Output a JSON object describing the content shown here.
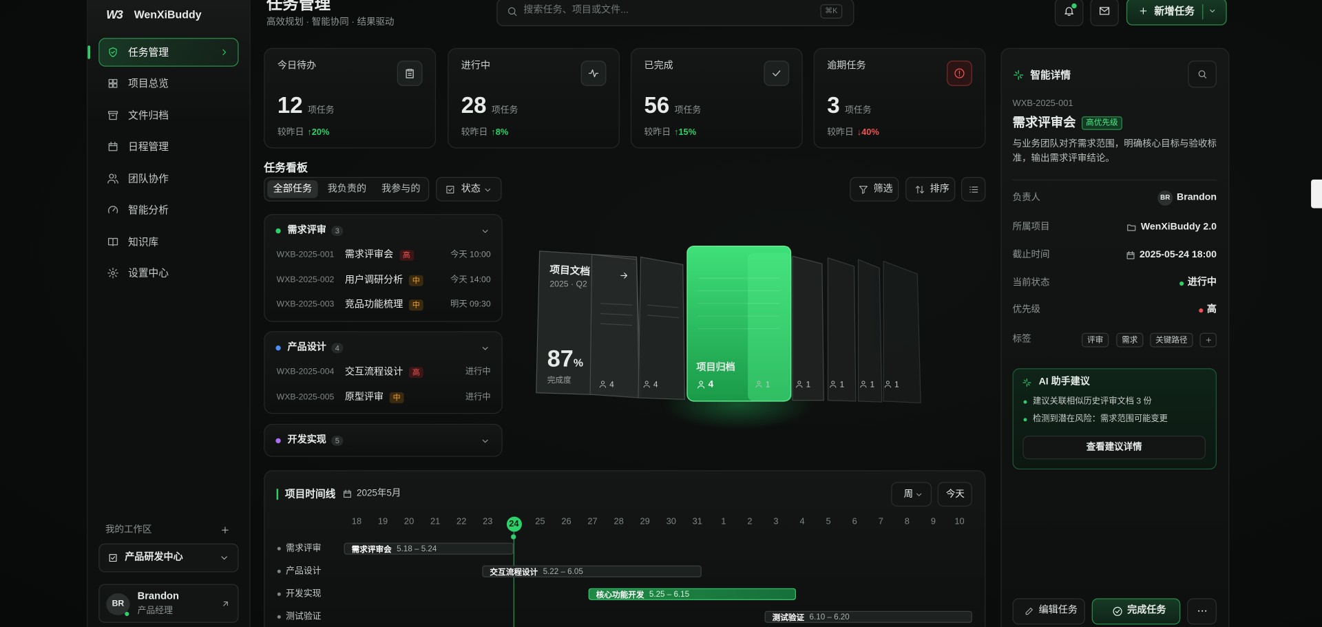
{
  "sidebar": {
    "logo_mark": "W3",
    "brand": "WenXiBuddy",
    "nav": [
      "任务管理",
      "项目总览",
      "文件归档",
      "日程管理",
      "团队协作",
      "智能分析",
      "知识库",
      "设置中心"
    ],
    "workspace_label": "我的工作区",
    "workspace": "产品研发中心",
    "user": {
      "initials": "BR",
      "name": "Brandon",
      "role": "产品经理"
    }
  },
  "header": {
    "title": "任务管理",
    "subtitle": "高效规划 · 智能协同 · 结果驱动",
    "search_placeholder": "搜索任务、项目或文件...",
    "shortcut": "⌘K",
    "new_button": "新增任务"
  },
  "stats": [
    {
      "label": "今日待办",
      "value": 12,
      "unit": "项任务",
      "compare": "较昨日",
      "change": "↑20%"
    },
    {
      "label": "进行中",
      "value": 28,
      "unit": "项任务",
      "compare": "较昨日",
      "change": "↑8%"
    },
    {
      "label": "已完成",
      "value": 56,
      "unit": "项任务",
      "compare": "较昨日",
      "change": "↑15%"
    },
    {
      "label": "逾期任务",
      "value": 3,
      "unit": "项任务",
      "compare": "较昨日",
      "change": "↓40%"
    }
  ],
  "board": {
    "title": "任务看板",
    "tabs": [
      "全部任务",
      "我负责的",
      "我参与的"
    ],
    "status": "状态",
    "filter": "筛选",
    "sort": "排序",
    "groups": [
      {
        "name": "需求评审",
        "count": 3,
        "tasks": [
          {
            "id": "WXB-2025-001",
            "name": "需求评审会",
            "priority": "高",
            "time": "今天 10:00"
          },
          {
            "id": "WXB-2025-002",
            "name": "用户调研分析",
            "priority": "中",
            "time": "今天 14:00"
          },
          {
            "id": "WXB-2025-003",
            "name": "竞品功能梳理",
            "priority": "中",
            "time": "明天 09:30"
          }
        ]
      },
      {
        "name": "产品设计",
        "count": 4,
        "tasks": [
          {
            "id": "WXB-2025-004",
            "name": "交互流程设计",
            "priority": "高",
            "time": "进行中"
          },
          {
            "id": "WXB-2025-005",
            "name": "原型评审",
            "priority": "中",
            "time": "进行中"
          }
        ]
      },
      {
        "name": "开发实现",
        "count": 5,
        "tasks": []
      }
    ]
  },
  "illustration": {
    "doc_title": "项目文档",
    "doc_period": "2025 · Q2",
    "completion": "87",
    "completion_unit": "%",
    "completion_label": "完成度",
    "archive_title": "项目归档",
    "card_counts": [
      4,
      4,
      4,
      1,
      1,
      1,
      1,
      1
    ]
  },
  "timeline": {
    "title": "项目时间线",
    "month": "2025年5月",
    "view": "周",
    "today_button": "今天",
    "dates": [
      18,
      19,
      20,
      21,
      22,
      23,
      24,
      25,
      26,
      27,
      28,
      29,
      30,
      31,
      1,
      2,
      3,
      4,
      5,
      6,
      7,
      8,
      9,
      10
    ],
    "rows": [
      {
        "label": "需求评审",
        "bar": "需求评审会",
        "range": "5.18 – 5.24"
      },
      {
        "label": "产品设计",
        "bar": "交互流程设计",
        "range": "5.22 – 6.05"
      },
      {
        "label": "开发实现",
        "bar": "核心功能开发",
        "range": "5.25 – 6.15"
      },
      {
        "label": "测试验证",
        "bar": "测试验证",
        "range": "6.10 – 6.20"
      }
    ]
  },
  "details": {
    "title": "智能详情",
    "id": "WXB-2025-001",
    "name": "需求评审会",
    "badge": "高优先级",
    "description": "与业务团队对齐需求范围，明确核心目标与验收标准，输出需求评审结论。",
    "fields": [
      {
        "label": "负责人",
        "value": "Brandon",
        "avatar": "BR"
      },
      {
        "label": "所属项目",
        "value": "WenXiBuddy 2.0"
      },
      {
        "label": "截止时间",
        "value": "2025-05-24 18:00"
      },
      {
        "label": "当前状态",
        "value": "进行中"
      },
      {
        "label": "优先级",
        "value": "高"
      }
    ],
    "tags_label": "标签",
    "tags": [
      "评审",
      "需求",
      "关键路径"
    ],
    "ai": {
      "title": "AI 助手建议",
      "items": [
        "建议关联相似历史评审文档 3 份",
        "检测到潜在风险：需求范围可能变更"
      ],
      "button": "查看建议详情"
    },
    "actions": {
      "edit": "编辑任务",
      "complete": "完成任务"
    }
  }
}
